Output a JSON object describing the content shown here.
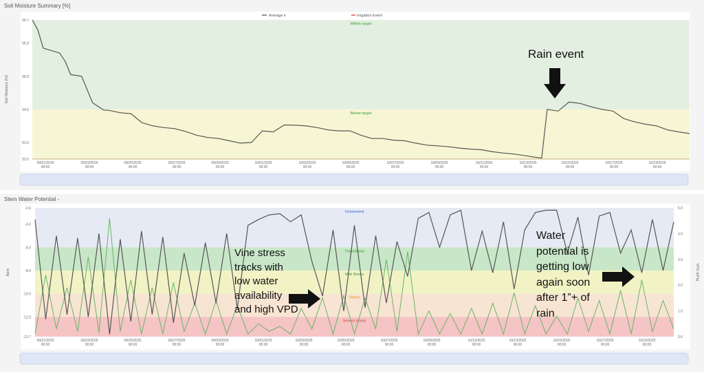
{
  "panel1": {
    "title": "Soil Moisture Summary [%]",
    "legend": [
      "Average ir",
      "Irrigation Event"
    ]
  },
  "panel2": {
    "title": "Stem Water Potential -"
  },
  "annotations": {
    "rain": "Rain event",
    "stress": "Vine stress tracks with low water availability and high VPD",
    "water": "Water potential is getting low again soon after 1”+ of rain"
  },
  "colors": {
    "within_target": "#e3efe1",
    "below_target": "#f6f6d4",
    "unstressed": "#e6eaf4",
    "transitional": "#c8e7c8",
    "mild_stress": "#f1f3c5",
    "stress": "#f8e4d2",
    "severe_stress": "#f5c4c4",
    "moisture_line": "#555555",
    "swp_line": "#555555",
    "vpd_line": "#6ab36a"
  },
  "chart_data": [
    {
      "type": "line",
      "title": "Soil Moisture Summary [%]",
      "ylabel": "Soil Moisture [%]",
      "xlabel": "",
      "ylim": [
        52.5,
        56.7
      ],
      "yticks": [
        "56.7",
        "56.0",
        "55.0",
        "54.0",
        "53.0",
        "52.5"
      ],
      "xticks": [
        "09/21/2025 00:00",
        "09/23/2025 00:00",
        "09/25/2025 00:00",
        "09/27/2025 00:00",
        "09/29/2025 00:00",
        "10/01/2025 00:00",
        "10/03/2025 00:00",
        "10/05/2025 00:00",
        "10/07/2025 00:00",
        "10/09/2025 00:00",
        "10/11/2025 00:00",
        "10/13/2025 00:00",
        "10/15/2025 00:00",
        "10/17/2025 00:00",
        "10/19/2025 00:00"
      ],
      "zones": [
        {
          "label": "Within target",
          "from": 54.0,
          "to": 56.7,
          "color": "#e3efe1",
          "label_color": "#3a9a3a"
        },
        {
          "label": "Below target",
          "from": 52.5,
          "to": 54.0,
          "color": "#f6f6d4",
          "label_color": "#3a9a3a"
        }
      ],
      "series": [
        {
          "name": "Average ir",
          "x": [
            "09/20 12:00",
            "09/20 18:00",
            "09/21 00:00",
            "09/21 06:00",
            "09/21 18:00",
            "09/22 00:00",
            "09/22 06:00",
            "09/22 18:00",
            "09/23 00:00",
            "09/23 06:00",
            "09/23 18:00",
            "09/24 00:00",
            "09/24 12:00",
            "09/25 00:00",
            "09/25 12:00",
            "09/26 00:00",
            "09/26 12:00",
            "09/27 00:00",
            "09/27 12:00",
            "09/28 00:00",
            "09/28 12:00",
            "09/29 00:00",
            "09/29 12:00",
            "09/30 00:00",
            "09/30 12:00",
            "10/01 00:00",
            "10/01 12:00",
            "10/02 00:00",
            "10/02 12:00",
            "10/03 00:00",
            "10/03 12:00",
            "10/04 00:00",
            "10/04 12:00",
            "10/05 00:00",
            "10/05 12:00",
            "10/06 00:00",
            "10/06 12:00",
            "10/07 00:00",
            "10/07 12:00",
            "10/08 00:00",
            "10/08 12:00",
            "10/09 00:00",
            "10/09 12:00",
            "10/10 00:00",
            "10/10 12:00",
            "10/11 00:00",
            "10/11 12:00",
            "10/12 00:00",
            "10/12 12:00",
            "10/13 00:00",
            "10/13 12:00",
            "10/13 18:00",
            "10/14 00:00",
            "10/14 12:00",
            "10/15 00:00",
            "10/15 12:00",
            "10/16 00:00",
            "10/16 12:00",
            "10/17 00:00",
            "10/17 12:00",
            "10/18 00:00",
            "10/18 12:00",
            "10/19 00:00",
            "10/19 12:00",
            "10/20 00:00",
            "10/20 12:00"
          ],
          "values": [
            56.7,
            56.4,
            55.85,
            55.8,
            55.7,
            55.45,
            55.05,
            55.0,
            54.6,
            54.2,
            53.98,
            53.97,
            53.9,
            53.87,
            53.6,
            53.5,
            53.45,
            53.42,
            53.33,
            53.22,
            53.15,
            53.12,
            53.05,
            52.98,
            53.0,
            53.35,
            53.32,
            53.53,
            53.52,
            53.5,
            53.45,
            53.38,
            53.35,
            53.35,
            53.22,
            53.12,
            53.12,
            53.07,
            53.05,
            52.98,
            52.92,
            52.9,
            52.87,
            52.83,
            52.8,
            52.78,
            52.72,
            52.68,
            52.65,
            52.6,
            52.55,
            52.53,
            54.0,
            53.95,
            54.22,
            54.18,
            54.08,
            54.0,
            53.95,
            53.72,
            53.62,
            53.55,
            53.5,
            53.38,
            53.32,
            53.27
          ]
        },
        {
          "name": "Irrigation Event",
          "x": [],
          "values": []
        }
      ]
    },
    {
      "type": "line",
      "title": "Stem Water Potential -",
      "ylabel": "Bars",
      "y2label": "VPD (kPa)",
      "ylim": [
        -13.7,
        -2.6
      ],
      "y2lim": [
        0.0,
        5.0
      ],
      "yticks": [
        "-2.6",
        "-4.0",
        "-6.0",
        "-8.0",
        "-10.0",
        "-12.0",
        "-13.7"
      ],
      "y2ticks": [
        "5.0",
        "4.0",
        "3.0",
        "2.0",
        "1.0",
        "0.0"
      ],
      "xticks": [
        "09/21/2025 00:00",
        "09/23/2025 00:00",
        "09/25/2025 00:00",
        "09/27/2025 00:00",
        "09/29/2025 00:00",
        "10/01/2025 00:00",
        "10/03/2025 00:00",
        "10/05/2025 00:00",
        "10/07/2025 00:00",
        "10/09/2025 00:00",
        "10/12/2025 00:00",
        "10/13/2025 00:00",
        "10/15/2025 00:00",
        "10/17/2025 00:00",
        "10/19/2025 00:00"
      ],
      "zones": [
        {
          "label": "Unstressed",
          "from": -6.0,
          "to": -2.6,
          "color": "#e6eaf4",
          "label_color": "#3f5fd0"
        },
        {
          "label": "Transitional",
          "from": -8.0,
          "to": -6.0,
          "color": "#c8e7c8",
          "label_color": "#3a9a3a"
        },
        {
          "label": "Mild Stress",
          "from": -10.0,
          "to": -8.0,
          "color": "#f1f3c5",
          "label_color": "#3a9a3a"
        },
        {
          "label": "Stress",
          "from": -12.0,
          "to": -10.0,
          "color": "#f8e4d2",
          "label_color": "#e0902a"
        },
        {
          "label": "Severe stress",
          "from": -13.7,
          "to": -12.0,
          "color": "#f5c4c4",
          "label_color": "#d43a3a"
        }
      ],
      "series": [
        {
          "name": "Stem water potential",
          "x": [
            "09/20 12:00",
            "09/21 00:00",
            "09/21 12:00",
            "09/22 00:00",
            "09/22 12:00",
            "09/23 00:00",
            "09/23 12:00",
            "09/24 00:00",
            "09/24 12:00",
            "09/25 00:00",
            "09/25 12:00",
            "09/26 00:00",
            "09/26 12:00",
            "09/27 00:00",
            "09/27 12:00",
            "09/28 00:00",
            "09/28 12:00",
            "09/29 00:00",
            "09/29 12:00",
            "09/30 00:00",
            "09/30 12:00",
            "10/01 00:00",
            "10/01 12:00",
            "10/02 00:00",
            "10/02 12:00",
            "10/03 00:00",
            "10/03 12:00",
            "10/04 00:00",
            "10/04 12:00",
            "10/05 00:00",
            "10/05 12:00",
            "10/06 00:00",
            "10/06 12:00",
            "10/07 00:00",
            "10/07 12:00",
            "10/08 00:00",
            "10/08 12:00",
            "10/09 00:00",
            "10/09 12:00",
            "10/10 00:00",
            "10/10 12:00",
            "10/11 00:00",
            "10/11 12:00",
            "10/12 00:00",
            "10/12 12:00",
            "10/13 00:00",
            "10/13 12:00",
            "10/14 00:00",
            "10/14 12:00",
            "10/15 00:00",
            "10/15 12:00",
            "10/16 00:00",
            "10/16 12:00",
            "10/17 00:00",
            "10/17 12:00",
            "10/18 00:00",
            "10/18 12:00",
            "10/19 00:00",
            "10/19 12:00",
            "10/20 00:00",
            "10/20 12:00"
          ],
          "values": [
            -3.6,
            -12.2,
            -5.0,
            -11.8,
            -5.2,
            -12.0,
            -4.8,
            -13.5,
            -5.3,
            -12.4,
            -4.6,
            -11.8,
            -5.1,
            -12.5,
            -6.5,
            -11.0,
            -5.6,
            -10.8,
            -4.8,
            -11.3,
            -4.1,
            -3.6,
            -3.2,
            -3.1,
            -3.8,
            -3.2,
            -7.2,
            -10.2,
            -4.5,
            -11.5,
            -4.1,
            -11.2,
            -5.0,
            -10.8,
            -5.5,
            -8.5,
            -3.5,
            -3.0,
            -6.0,
            -3.2,
            -2.8,
            -8.0,
            -4.6,
            -8.2,
            -3.8,
            -9.6,
            -4.5,
            -3.0,
            -2.8,
            -2.8,
            -6.5,
            -3.4,
            -8.4,
            -3.3,
            -3.0,
            -6.5,
            -4.5,
            -8.2,
            -3.6,
            -8.0,
            -3.8
          ]
        },
        {
          "name": "VPD",
          "x": [
            "09/20 12:00",
            "09/21 00:00",
            "09/21 12:00",
            "09/22 00:00",
            "09/22 12:00",
            "09/23 00:00",
            "09/23 12:00",
            "09/24 00:00",
            "09/24 12:00",
            "09/25 00:00",
            "09/25 12:00",
            "09/26 00:00",
            "09/26 12:00",
            "09/27 00:00",
            "09/27 12:00",
            "09/28 00:00",
            "09/28 12:00",
            "09/29 00:00",
            "09/29 12:00",
            "09/30 00:00",
            "09/30 12:00",
            "10/01 00:00",
            "10/01 12:00",
            "10/02 00:00",
            "10/02 12:00",
            "10/03 00:00",
            "10/03 12:00",
            "10/04 00:00",
            "10/04 12:00",
            "10/05 00:00",
            "10/05 12:00",
            "10/06 00:00",
            "10/06 12:00",
            "10/07 00:00",
            "10/07 12:00",
            "10/08 00:00",
            "10/08 12:00",
            "10/09 00:00",
            "10/09 12:00",
            "10/10 00:00",
            "10/10 12:00",
            "10/11 00:00",
            "10/11 12:00",
            "10/12 00:00",
            "10/12 12:00",
            "10/13 00:00",
            "10/13 12:00",
            "10/14 00:00",
            "10/14 12:00",
            "10/15 00:00",
            "10/15 12:00",
            "10/16 00:00",
            "10/16 12:00",
            "10/17 00:00",
            "10/17 12:00",
            "10/18 00:00",
            "10/18 12:00",
            "10/19 00:00",
            "10/19 12:00",
            "10/20 00:00",
            "10/20 12:00"
          ],
          "values": [
            0.1,
            2.4,
            0.3,
            1.9,
            0.2,
            3.1,
            0.15,
            4.6,
            0.2,
            2.2,
            0.1,
            1.9,
            0.1,
            2.1,
            0.2,
            1.3,
            0.1,
            1.4,
            0.1,
            1.2,
            0.1,
            0.5,
            0.2,
            0.4,
            0.1,
            1.1,
            0.3,
            1.5,
            0.1,
            1.6,
            0.1,
            1.5,
            0.3,
            3.0,
            0.2,
            3.3,
            0.1,
            1.0,
            0.1,
            0.9,
            0.1,
            1.1,
            0.1,
            1.3,
            0.1,
            1.7,
            0.1,
            1.2,
            0.1,
            0.8,
            0.1,
            1.5,
            0.2,
            1.4,
            0.1,
            1.8,
            0.1,
            2.2,
            0.2,
            1.4,
            0.3
          ]
        }
      ]
    }
  ]
}
